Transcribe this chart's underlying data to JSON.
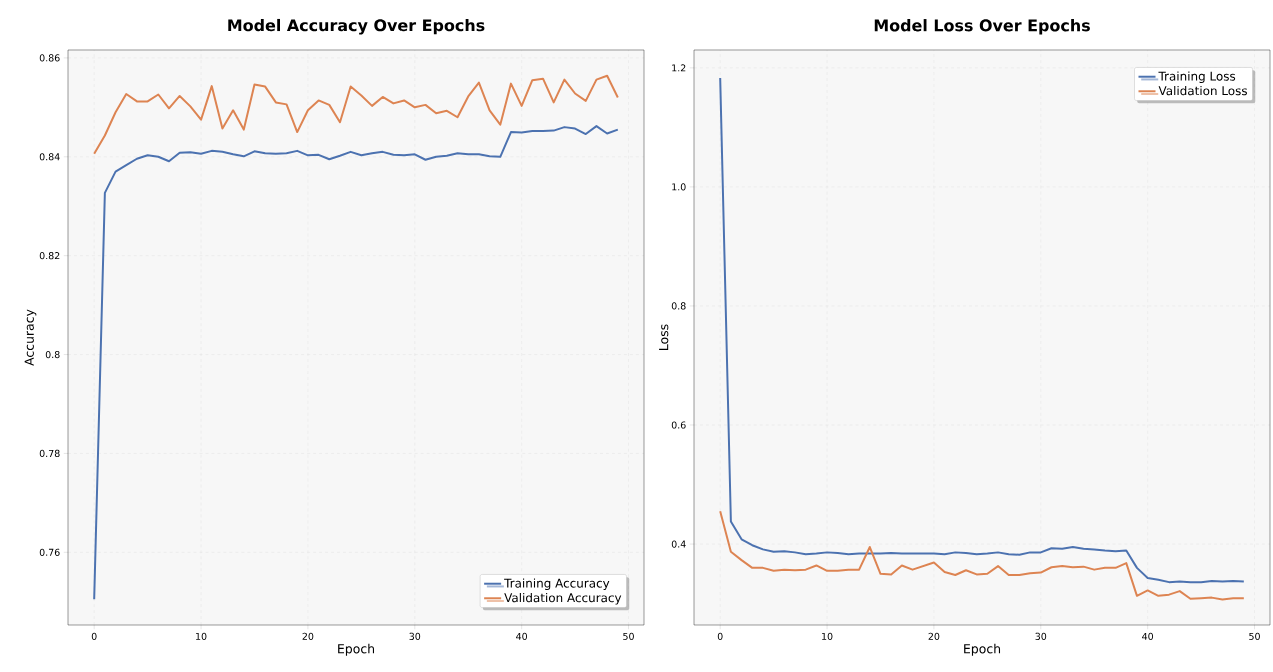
{
  "chart_data": [
    {
      "type": "line",
      "title": "Model Accuracy Over Epochs",
      "xlabel": "Epoch",
      "ylabel": "Accuracy",
      "x": [
        0,
        1,
        2,
        3,
        4,
        5,
        6,
        7,
        8,
        9,
        10,
        11,
        12,
        13,
        14,
        15,
        16,
        17,
        18,
        19,
        20,
        21,
        22,
        23,
        24,
        25,
        26,
        27,
        28,
        29,
        30,
        31,
        32,
        33,
        34,
        35,
        36,
        37,
        38,
        39,
        40,
        41,
        42,
        43,
        44,
        45,
        46,
        47,
        48,
        49
      ],
      "series": [
        {
          "name": "Training Accuracy",
          "color": "#4c72b0",
          "values": [
            0.7505,
            0.8327,
            0.837,
            0.8383,
            0.8396,
            0.8403,
            0.84,
            0.8391,
            0.8408,
            0.8409,
            0.8406,
            0.8412,
            0.841,
            0.8405,
            0.8401,
            0.8411,
            0.8407,
            0.8406,
            0.8407,
            0.8412,
            0.8403,
            0.8404,
            0.8395,
            0.8402,
            0.841,
            0.8403,
            0.8407,
            0.841,
            0.8404,
            0.8403,
            0.8405,
            0.8394,
            0.84,
            0.8402,
            0.8407,
            0.8405,
            0.8405,
            0.8401,
            0.84,
            0.845,
            0.8449,
            0.8452,
            0.8452,
            0.8453,
            0.846,
            0.8457,
            0.8446,
            0.8462,
            0.8447,
            0.8455
          ]
        },
        {
          "name": "Validation Accuracy",
          "color": "#dd8452",
          "values": [
            0.8406,
            0.8443,
            0.849,
            0.8527,
            0.8512,
            0.8512,
            0.8526,
            0.8498,
            0.8523,
            0.8502,
            0.8475,
            0.8543,
            0.8457,
            0.8494,
            0.8455,
            0.8546,
            0.8542,
            0.851,
            0.8506,
            0.845,
            0.8494,
            0.8514,
            0.8505,
            0.847,
            0.8542,
            0.8524,
            0.8503,
            0.8521,
            0.8508,
            0.8514,
            0.85,
            0.8505,
            0.8488,
            0.8493,
            0.848,
            0.8522,
            0.855,
            0.8494,
            0.8465,
            0.8548,
            0.8503,
            0.8555,
            0.8558,
            0.851,
            0.8556,
            0.8528,
            0.8513,
            0.8556,
            0.8564,
            0.852
          ]
        }
      ],
      "xlim": [
        -2.45,
        51.45
      ],
      "ylim": [
        0.7453,
        0.8616
      ],
      "xticks": [
        0,
        10,
        20,
        30,
        40,
        50
      ],
      "yticks": [
        0.76,
        0.78,
        0.8,
        0.82,
        0.84,
        0.86
      ],
      "grid": true,
      "legend": "bottom right",
      "marker": "none",
      "line_style": "solid"
    },
    {
      "type": "line",
      "title": "Model Loss Over Epochs",
      "xlabel": "Epoch",
      "ylabel": "Loss",
      "x": [
        0,
        1,
        2,
        3,
        4,
        5,
        6,
        7,
        8,
        9,
        10,
        11,
        12,
        13,
        14,
        15,
        16,
        17,
        18,
        19,
        20,
        21,
        22,
        23,
        24,
        25,
        26,
        27,
        28,
        29,
        30,
        31,
        32,
        33,
        34,
        35,
        36,
        37,
        38,
        39,
        40,
        41,
        42,
        43,
        44,
        45,
        46,
        47,
        48,
        49
      ],
      "series": [
        {
          "name": "Training Loss",
          "color": "#4c72b0",
          "values": [
            1.183,
            0.438,
            0.408,
            0.398,
            0.391,
            0.387,
            0.388,
            0.386,
            0.383,
            0.384,
            0.386,
            0.385,
            0.383,
            0.384,
            0.384,
            0.384,
            0.385,
            0.384,
            0.384,
            0.384,
            0.384,
            0.383,
            0.386,
            0.385,
            0.383,
            0.384,
            0.386,
            0.383,
            0.382,
            0.386,
            0.386,
            0.393,
            0.392,
            0.395,
            0.392,
            0.391,
            0.389,
            0.388,
            0.389,
            0.36,
            0.343,
            0.34,
            0.336,
            0.337,
            0.336,
            0.336,
            0.338,
            0.337,
            0.338,
            0.337
          ]
        },
        {
          "name": "Validation Loss",
          "color": "#dd8452",
          "values": [
            0.455,
            0.387,
            0.373,
            0.36,
            0.36,
            0.355,
            0.357,
            0.356,
            0.357,
            0.364,
            0.355,
            0.355,
            0.357,
            0.357,
            0.395,
            0.35,
            0.349,
            0.364,
            0.357,
            0.363,
            0.369,
            0.353,
            0.348,
            0.356,
            0.349,
            0.35,
            0.363,
            0.348,
            0.348,
            0.351,
            0.352,
            0.361,
            0.363,
            0.361,
            0.362,
            0.357,
            0.36,
            0.36,
            0.368,
            0.313,
            0.322,
            0.313,
            0.315,
            0.321,
            0.308,
            0.309,
            0.31,
            0.307,
            0.309,
            0.309
          ]
        }
      ],
      "xlim": [
        -2.45,
        51.45
      ],
      "ylim": [
        0.264,
        1.23
      ],
      "xticks": [
        0,
        10,
        20,
        30,
        40,
        50
      ],
      "yticks": [
        0.4,
        0.6,
        0.8,
        {
          "value": 1.0,
          "label": "1.0"
        },
        1.2
      ],
      "grid": true,
      "legend": "top right",
      "marker": "none",
      "line_style": "solid"
    }
  ]
}
